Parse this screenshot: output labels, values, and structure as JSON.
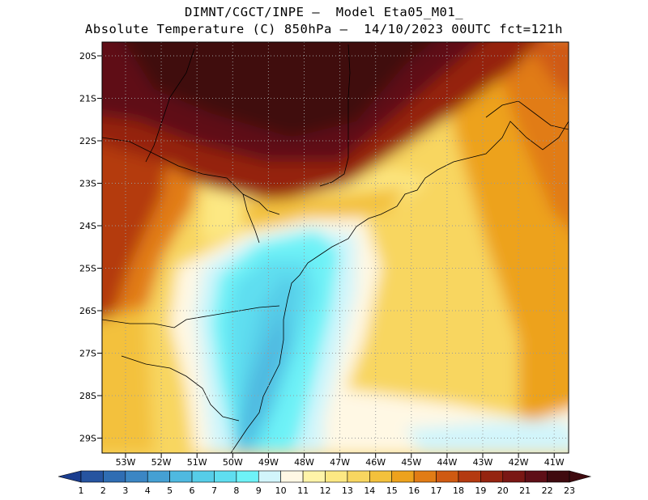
{
  "header": {
    "line1": "DIMNT/CGCT/INPE –  Model Eta05_M01_",
    "line2": "Absolute Temperature (C) 850hPa –  14/10/2023 00UTC fct=121h"
  },
  "map": {
    "lat_labels": [
      "20S",
      "21S",
      "22S",
      "23S",
      "24S",
      "25S",
      "26S",
      "27S",
      "28S",
      "29S"
    ],
    "lon_labels": [
      "53W",
      "52W",
      "51W",
      "50W",
      "49W",
      "48W",
      "47W",
      "46W",
      "45W",
      "44W",
      "43W",
      "42W",
      "41W"
    ],
    "gridlines": true,
    "coastline_color": "#000000"
  },
  "colorbar": {
    "ticks": [
      "1",
      "2",
      "3",
      "4",
      "5",
      "6",
      "7",
      "8",
      "9",
      "10",
      "11",
      "12",
      "13",
      "14",
      "15",
      "16",
      "17",
      "18",
      "19",
      "20",
      "21",
      "22",
      "23"
    ],
    "colors": [
      "#1a3d8f",
      "#2654a0",
      "#2f6db3",
      "#3b86c4",
      "#45a0d3",
      "#4fb9e0",
      "#56cde8",
      "#5fdef0",
      "#6ef2f7",
      "#d2f5fb",
      "#fff8e4",
      "#fff4a8",
      "#fde883",
      "#f8d660",
      "#f3c13c",
      "#eda21d",
      "#e17c15",
      "#cf5a12",
      "#b43a10",
      "#952410",
      "#7a1714",
      "#5e0f17",
      "#3f0a0f"
    ]
  }
}
